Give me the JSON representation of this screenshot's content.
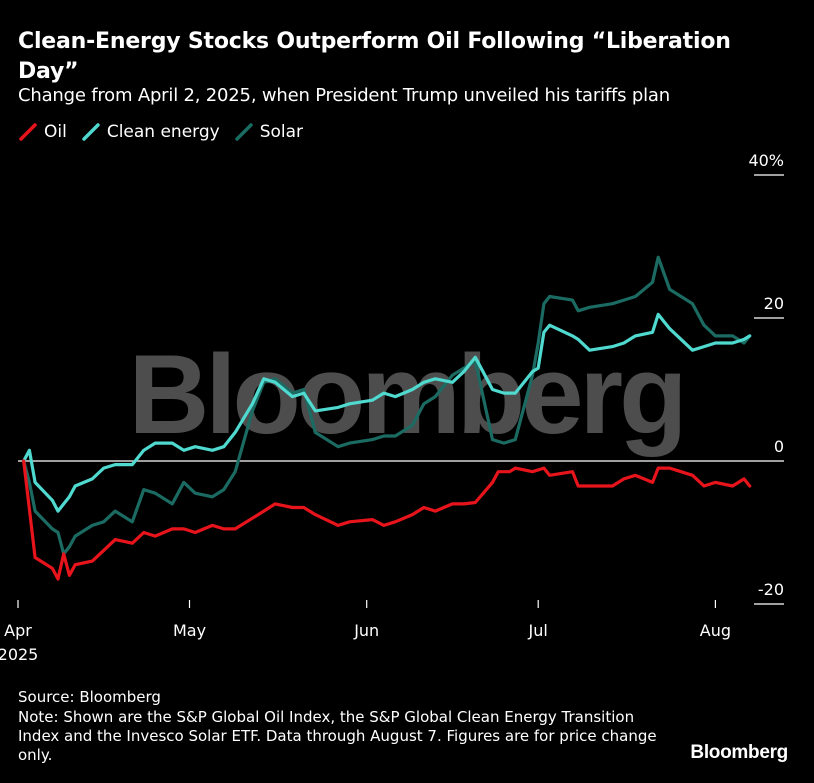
{
  "header": {
    "title": "Clean-Energy Stocks Outperform Oil Following “Liberation Day”",
    "subtitle": "Change from April 2, 2025, when President Trump unveiled his tariffs plan"
  },
  "legend": [
    {
      "label": "Oil",
      "color": "#e8141c"
    },
    {
      "label": "Clean energy",
      "color": "#4fd9cf"
    },
    {
      "label": "Solar",
      "color": "#1b6b63"
    }
  ],
  "watermark": "Bloomberg",
  "footer": {
    "source": "Source: Bloomberg",
    "note": "Note: Shown are the S&P Global Oil Index, the S&P Global Clean Energy Transition Index and the Invesco Solar ETF. Data through August 7. Figures are for price change only.",
    "brand": "Bloomberg"
  },
  "chart_data": {
    "type": "line",
    "ylim": [
      -20,
      40
    ],
    "y_ticks": [
      {
        "value": 40,
        "label": "40%"
      },
      {
        "value": 20,
        "label": "20"
      },
      {
        "value": 0,
        "label": "0"
      },
      {
        "value": -20,
        "label": "-20"
      }
    ],
    "x_ticks": [
      {
        "date": "2025-04-01",
        "label": "Apr",
        "sublabel": "2025"
      },
      {
        "date": "2025-05-01",
        "label": "May"
      },
      {
        "date": "2025-06-01",
        "label": "Jun"
      },
      {
        "date": "2025-07-01",
        "label": "Jul"
      },
      {
        "date": "2025-08-01",
        "label": "Aug"
      }
    ],
    "xlim": [
      "2025-04-01",
      "2025-08-13"
    ],
    "grid": false,
    "legend_position": "top-left",
    "series": [
      {
        "name": "Oil",
        "color": "#e8141c",
        "points": [
          [
            "2025-04-02",
            0
          ],
          [
            "2025-04-04",
            -13.5
          ],
          [
            "2025-04-07",
            -15
          ],
          [
            "2025-04-08",
            -16.5
          ],
          [
            "2025-04-09",
            -13
          ],
          [
            "2025-04-10",
            -16
          ],
          [
            "2025-04-11",
            -14.5
          ],
          [
            "2025-04-14",
            -14
          ],
          [
            "2025-04-16",
            -12.5
          ],
          [
            "2025-04-18",
            -11
          ],
          [
            "2025-04-21",
            -11.5
          ],
          [
            "2025-04-23",
            -10
          ],
          [
            "2025-04-25",
            -10.5
          ],
          [
            "2025-04-28",
            -9.5
          ],
          [
            "2025-04-30",
            -9.5
          ],
          [
            "2025-05-02",
            -10
          ],
          [
            "2025-05-05",
            -9
          ],
          [
            "2025-05-07",
            -9.5
          ],
          [
            "2025-05-09",
            -9.5
          ],
          [
            "2025-05-12",
            -8
          ],
          [
            "2025-05-14",
            -7
          ],
          [
            "2025-05-16",
            -6
          ],
          [
            "2025-05-19",
            -6.5
          ],
          [
            "2025-05-21",
            -6.5
          ],
          [
            "2025-05-23",
            -7.5
          ],
          [
            "2025-05-27",
            -9
          ],
          [
            "2025-05-29",
            -8.5
          ],
          [
            "2025-06-02",
            -8.2
          ],
          [
            "2025-06-04",
            -9
          ],
          [
            "2025-06-06",
            -8.5
          ],
          [
            "2025-06-09",
            -7.5
          ],
          [
            "2025-06-11",
            -6.5
          ],
          [
            "2025-06-13",
            -7
          ],
          [
            "2025-06-16",
            -6
          ],
          [
            "2025-06-18",
            -6
          ],
          [
            "2025-06-20",
            -5.8
          ],
          [
            "2025-06-23",
            -3
          ],
          [
            "2025-06-24",
            -1.5
          ],
          [
            "2025-06-26",
            -1.5
          ],
          [
            "2025-06-27",
            -1
          ],
          [
            "2025-06-30",
            -1.5
          ],
          [
            "2025-07-02",
            -1
          ],
          [
            "2025-07-03",
            -2
          ],
          [
            "2025-07-07",
            -1.5
          ],
          [
            "2025-07-08",
            -3.5
          ],
          [
            "2025-07-10",
            -3.5
          ],
          [
            "2025-07-14",
            -3.5
          ],
          [
            "2025-07-16",
            -2.5
          ],
          [
            "2025-07-18",
            -2
          ],
          [
            "2025-07-21",
            -3
          ],
          [
            "2025-07-22",
            -1
          ],
          [
            "2025-07-24",
            -1
          ],
          [
            "2025-07-28",
            -2
          ],
          [
            "2025-07-30",
            -3.5
          ],
          [
            "2025-08-01",
            -3
          ],
          [
            "2025-08-04",
            -3.5
          ],
          [
            "2025-08-06",
            -2.5
          ],
          [
            "2025-08-07",
            -3.5
          ]
        ]
      },
      {
        "name": "Clean energy",
        "color": "#4fd9cf",
        "points": [
          [
            "2025-04-02",
            0
          ],
          [
            "2025-04-03",
            1.5
          ],
          [
            "2025-04-04",
            -3
          ],
          [
            "2025-04-07",
            -5.5
          ],
          [
            "2025-04-08",
            -7
          ],
          [
            "2025-04-09",
            -6
          ],
          [
            "2025-04-10",
            -5
          ],
          [
            "2025-04-11",
            -3.5
          ],
          [
            "2025-04-14",
            -2.5
          ],
          [
            "2025-04-16",
            -1
          ],
          [
            "2025-04-18",
            -0.5
          ],
          [
            "2025-04-21",
            -0.5
          ],
          [
            "2025-04-23",
            1.5
          ],
          [
            "2025-04-25",
            2.5
          ],
          [
            "2025-04-28",
            2.5
          ],
          [
            "2025-04-30",
            1.5
          ],
          [
            "2025-05-02",
            2
          ],
          [
            "2025-05-05",
            1.5
          ],
          [
            "2025-05-07",
            2
          ],
          [
            "2025-05-09",
            4
          ],
          [
            "2025-05-12",
            8
          ],
          [
            "2025-05-14",
            11.5
          ],
          [
            "2025-05-16",
            11
          ],
          [
            "2025-05-19",
            9
          ],
          [
            "2025-05-21",
            9.5
          ],
          [
            "2025-05-23",
            7
          ],
          [
            "2025-05-27",
            7.5
          ],
          [
            "2025-05-29",
            8
          ],
          [
            "2025-06-02",
            8.5
          ],
          [
            "2025-06-04",
            9.5
          ],
          [
            "2025-06-06",
            9
          ],
          [
            "2025-06-09",
            10
          ],
          [
            "2025-06-11",
            11
          ],
          [
            "2025-06-13",
            11.5
          ],
          [
            "2025-06-16",
            11
          ],
          [
            "2025-06-18",
            12.5
          ],
          [
            "2025-06-20",
            14.5
          ],
          [
            "2025-06-23",
            10
          ],
          [
            "2025-06-25",
            9.5
          ],
          [
            "2025-06-27",
            9.5
          ],
          [
            "2025-06-30",
            12.5
          ],
          [
            "2025-07-01",
            13
          ],
          [
            "2025-07-02",
            18
          ],
          [
            "2025-07-03",
            19
          ],
          [
            "2025-07-07",
            17.5
          ],
          [
            "2025-07-08",
            17
          ],
          [
            "2025-07-10",
            15.5
          ],
          [
            "2025-07-14",
            16
          ],
          [
            "2025-07-16",
            16.5
          ],
          [
            "2025-07-18",
            17.5
          ],
          [
            "2025-07-21",
            18
          ],
          [
            "2025-07-22",
            20.5
          ],
          [
            "2025-07-24",
            18.5
          ],
          [
            "2025-07-28",
            15.5
          ],
          [
            "2025-07-30",
            16
          ],
          [
            "2025-08-01",
            16.5
          ],
          [
            "2025-08-04",
            16.5
          ],
          [
            "2025-08-06",
            17
          ],
          [
            "2025-08-07",
            17.5
          ]
        ]
      },
      {
        "name": "Solar",
        "color": "#1b6b63",
        "points": [
          [
            "2025-04-02",
            0
          ],
          [
            "2025-04-03",
            -3
          ],
          [
            "2025-04-04",
            -7
          ],
          [
            "2025-04-07",
            -9.5
          ],
          [
            "2025-04-08",
            -10
          ],
          [
            "2025-04-09",
            -13
          ],
          [
            "2025-04-10",
            -12
          ],
          [
            "2025-04-11",
            -10.5
          ],
          [
            "2025-04-14",
            -9
          ],
          [
            "2025-04-16",
            -8.5
          ],
          [
            "2025-04-18",
            -7
          ],
          [
            "2025-04-21",
            -8.5
          ],
          [
            "2025-04-23",
            -4
          ],
          [
            "2025-04-25",
            -4.5
          ],
          [
            "2025-04-28",
            -6
          ],
          [
            "2025-04-30",
            -3
          ],
          [
            "2025-05-02",
            -4.5
          ],
          [
            "2025-05-05",
            -5
          ],
          [
            "2025-05-07",
            -4
          ],
          [
            "2025-05-09",
            -1.5
          ],
          [
            "2025-05-12",
            7
          ],
          [
            "2025-05-14",
            11
          ],
          [
            "2025-05-16",
            11.5
          ],
          [
            "2025-05-19",
            9.5
          ],
          [
            "2025-05-21",
            10
          ],
          [
            "2025-05-23",
            4
          ],
          [
            "2025-05-27",
            2
          ],
          [
            "2025-05-29",
            2.5
          ],
          [
            "2025-06-02",
            3
          ],
          [
            "2025-06-04",
            3.5
          ],
          [
            "2025-06-06",
            3.5
          ],
          [
            "2025-06-09",
            5
          ],
          [
            "2025-06-11",
            8
          ],
          [
            "2025-06-13",
            9
          ],
          [
            "2025-06-16",
            12
          ],
          [
            "2025-06-18",
            13
          ],
          [
            "2025-06-20",
            14
          ],
          [
            "2025-06-23",
            3
          ],
          [
            "2025-06-25",
            2.5
          ],
          [
            "2025-06-27",
            3
          ],
          [
            "2025-06-30",
            12
          ],
          [
            "2025-07-01",
            16.5
          ],
          [
            "2025-07-02",
            22
          ],
          [
            "2025-07-03",
            23
          ],
          [
            "2025-07-07",
            22.5
          ],
          [
            "2025-07-08",
            21
          ],
          [
            "2025-07-10",
            21.5
          ],
          [
            "2025-07-14",
            22
          ],
          [
            "2025-07-16",
            22.5
          ],
          [
            "2025-07-18",
            23
          ],
          [
            "2025-07-21",
            25
          ],
          [
            "2025-07-22",
            28.5
          ],
          [
            "2025-07-24",
            24
          ],
          [
            "2025-07-28",
            22
          ],
          [
            "2025-07-30",
            19
          ],
          [
            "2025-08-01",
            17.5
          ],
          [
            "2025-08-04",
            17.5
          ],
          [
            "2025-08-06",
            16.5
          ],
          [
            "2025-08-07",
            17.5
          ]
        ]
      }
    ]
  }
}
